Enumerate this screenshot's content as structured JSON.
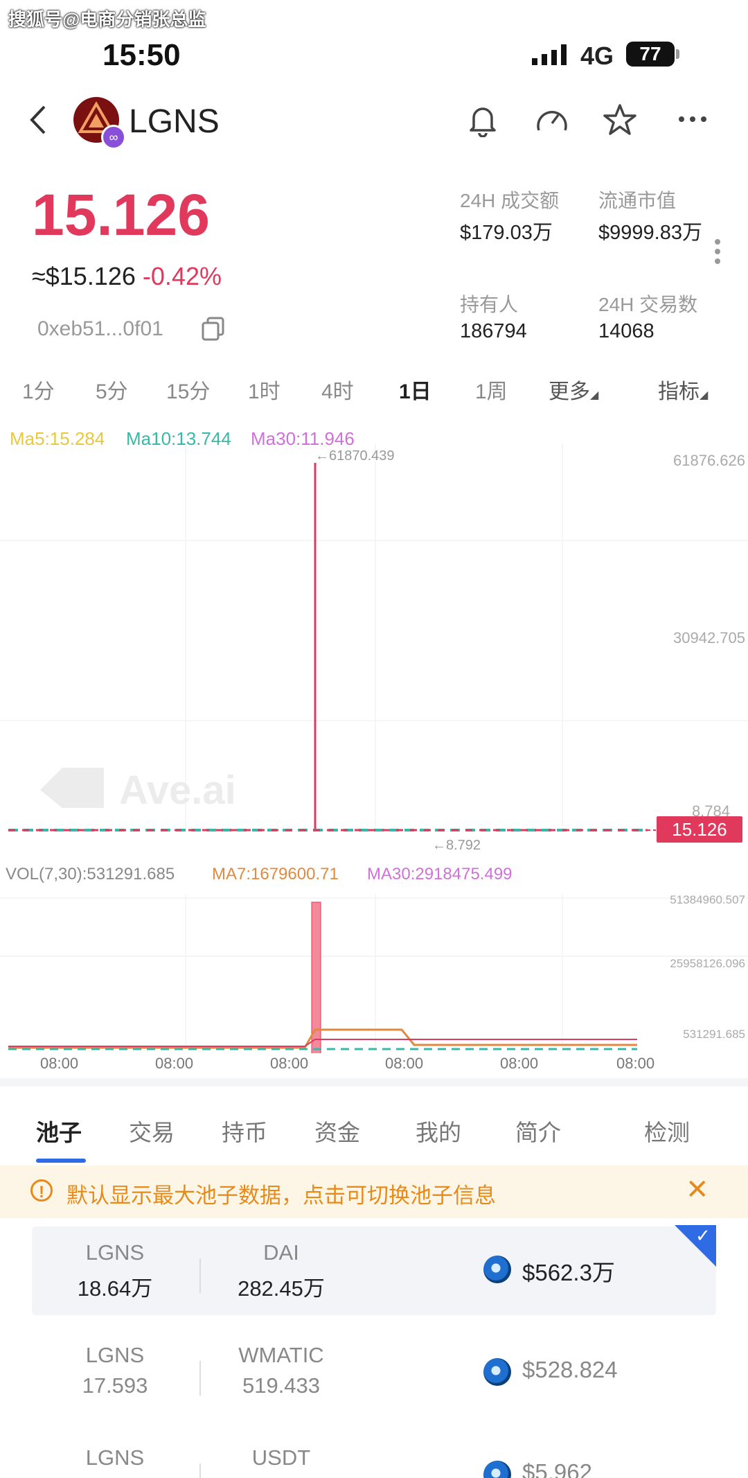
{
  "watermark": "搜狐号@电商分销张总监",
  "status_bar": {
    "time": "15:50",
    "network": "4G",
    "battery": "77"
  },
  "header": {
    "title": "LGNS"
  },
  "token": {
    "price": "15.126",
    "usd_price": "≈$15.126",
    "change": "-0.42%",
    "address": "0xeb51...0f01"
  },
  "stats": [
    {
      "label": "24H 成交额",
      "value": "$179.03万"
    },
    {
      "label": "流通市值",
      "value": "$9999.83万"
    },
    {
      "label": "持有人",
      "value": "186794"
    },
    {
      "label": "24H 交易数",
      "value": "14068"
    }
  ],
  "timeframes": [
    "1分",
    "5分",
    "15分",
    "1时",
    "4时",
    "1日",
    "1周",
    "更多",
    "指标"
  ],
  "active_timeframe": "1日",
  "chart": {
    "ma5": "Ma5:15.284",
    "ma10": "Ma10:13.744",
    "ma30": "Ma30:11.946",
    "y_labels": [
      "61876.626",
      "30942.705",
      "8.784"
    ],
    "peak_label": "←61870.439",
    "low_label": "←8.792",
    "current_price": "15.126",
    "watermark_text": "Ave.ai",
    "vol_label": "VOL(7,30):531291.685",
    "vol_ma7": "MA7:1679600.71",
    "vol_ma30": "MA30:2918475.499",
    "vol_y_labels": [
      "51384960.507",
      "25958126.096",
      "531291.685"
    ],
    "x_labels": [
      "08:00",
      "08:00",
      "08:00",
      "08:00",
      "08:00",
      "08:00"
    ],
    "colors": {
      "up": "#e0395c",
      "ma5": "#e8c840",
      "ma10": "#37b8a8",
      "ma30": "#d070d8",
      "ma7": "#e08a40"
    }
  },
  "chart_data": {
    "type": "line",
    "title": "",
    "series": [
      {
        "name": "Ma5",
        "values": [
          15.284
        ]
      },
      {
        "name": "Ma10",
        "values": [
          13.744
        ]
      },
      {
        "name": "Ma30",
        "values": [
          11.946
        ]
      }
    ],
    "ylim": [
      8.784,
      61876.626
    ],
    "peak_value": 61870.439,
    "low_value": 8.792,
    "current_value": 15.126
  },
  "tabs": [
    "池子",
    "交易",
    "持币",
    "资金",
    "我的",
    "简介",
    "检测"
  ],
  "active_tab": "池子",
  "notice": "默认显示最大池子数据，点击可切换池子信息",
  "pools": [
    {
      "token_a": "LGNS",
      "amount_a": "18.64万",
      "token_b": "DAI",
      "amount_b": "282.45万",
      "liquidity": "$562.3万",
      "selected": true
    },
    {
      "token_a": "LGNS",
      "amount_a": "17.593",
      "token_b": "WMATIC",
      "amount_b": "519.433",
      "liquidity": "$528.824",
      "selected": false
    },
    {
      "token_a": "LGNS",
      "amount_a": "",
      "token_b": "USDT",
      "amount_b": "",
      "liquidity": "$5.962",
      "selected": false
    }
  ]
}
